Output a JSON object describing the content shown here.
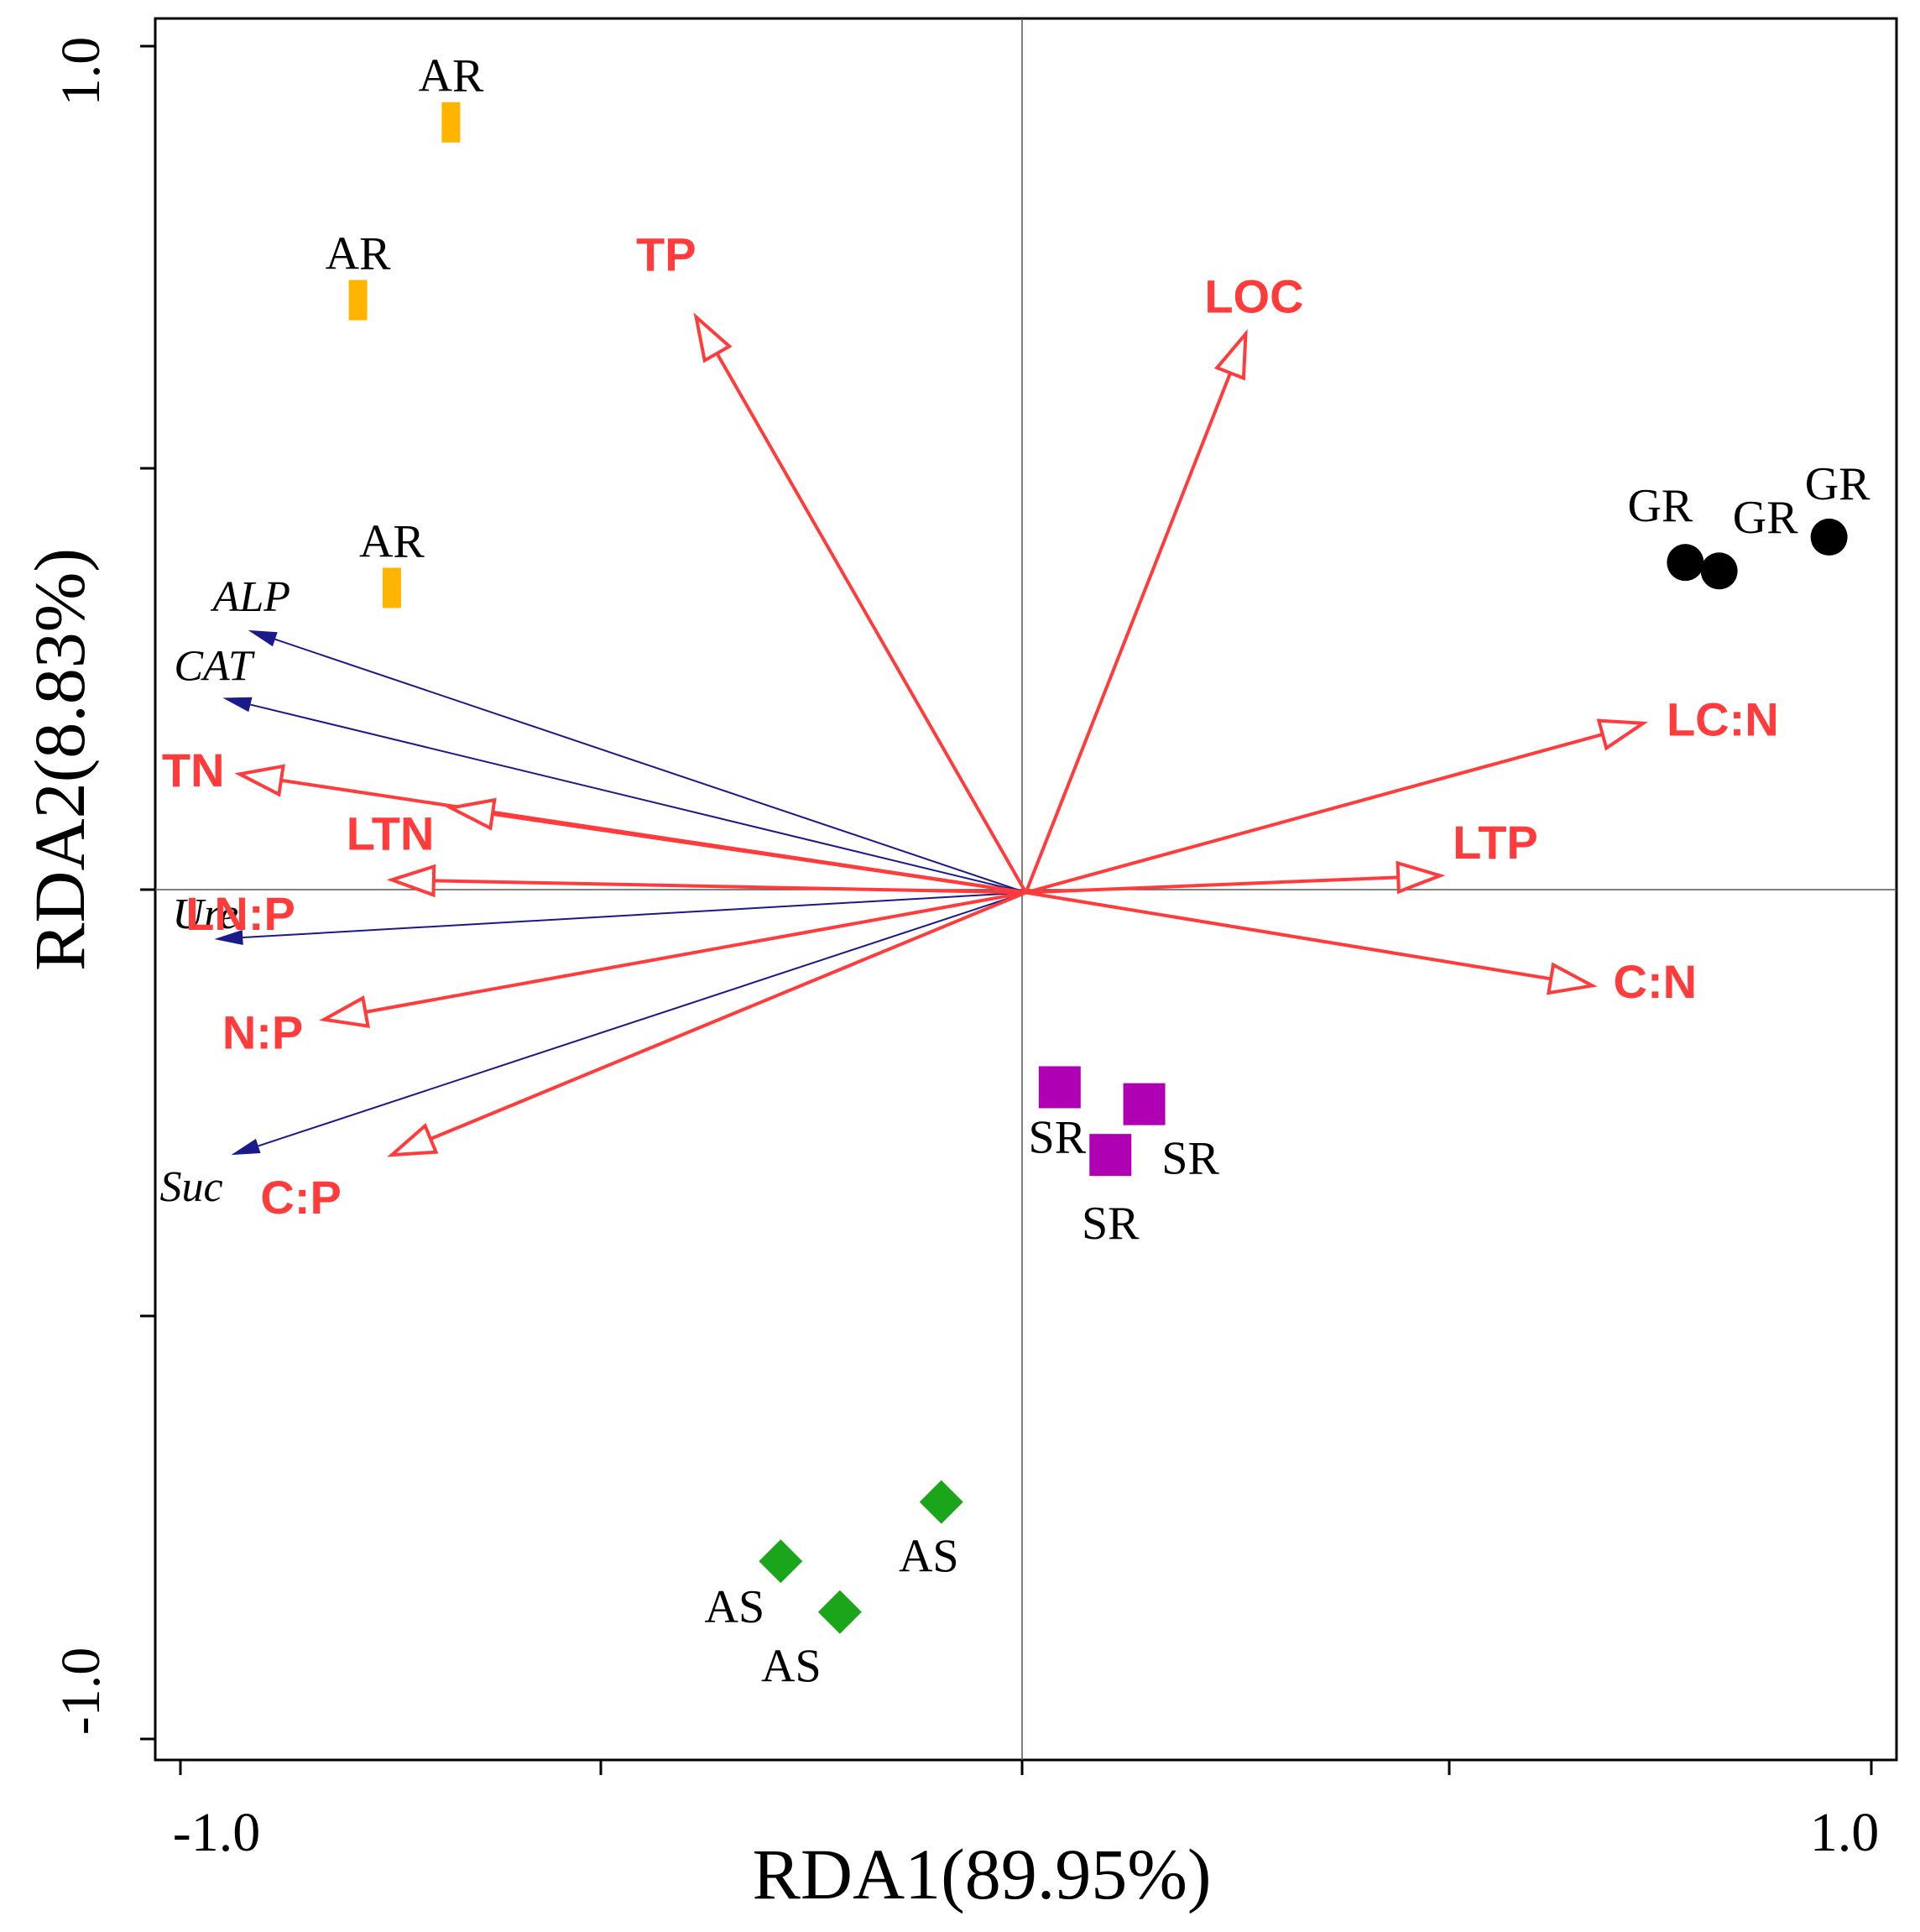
{
  "chart_data": {
    "type": "scatter",
    "subtype": "rda-biplot",
    "xlabel": "RDA1(89.95%)",
    "ylabel": "RDA2(8.83%)",
    "xlim": [
      -1.0,
      1.0
    ],
    "ylim": [
      -1.0,
      1.0
    ],
    "x_tick_labels": [
      "-1.0",
      "1.0"
    ],
    "y_tick_labels": [
      "1.0",
      "-1.0"
    ],
    "origin_lines": true,
    "colors": {
      "env_arrow": "#ff3b3b",
      "enzyme_arrow": "#1a1a8c",
      "AR": "#ffb400",
      "GR": "#000000",
      "SR": "#b000b4",
      "AS": "#1aa51a",
      "axis": "#000000"
    },
    "env_arrows": [
      {
        "label": "TP",
        "x": -0.39,
        "y": 0.68
      },
      {
        "label": "LOC",
        "x": 0.26,
        "y": 0.66
      },
      {
        "label": "LC:N",
        "x": 0.73,
        "y": 0.2
      },
      {
        "label": "LTP",
        "x": 0.49,
        "y": 0.02
      },
      {
        "label": "C:N",
        "x": 0.67,
        "y": -0.11
      },
      {
        "label": "TN",
        "x": -0.93,
        "y": 0.14
      },
      {
        "label": "LTN",
        "x": -0.68,
        "y": 0.1
      },
      {
        "label": "LN:P",
        "x": -0.75,
        "y": 0.015
      },
      {
        "label": "N:P",
        "x": -0.83,
        "y": -0.15
      },
      {
        "label": "C:P",
        "x": -0.75,
        "y": -0.31
      }
    ],
    "enzyme_arrows": [
      {
        "label": "ALP",
        "x": -0.92,
        "y": 0.31
      },
      {
        "label": "CAT",
        "x": -0.95,
        "y": 0.23
      },
      {
        "label": "Ure",
        "x": -0.96,
        "y": -0.055
      },
      {
        "label": "Suc",
        "x": -0.94,
        "y": -0.31
      }
    ],
    "sites": [
      {
        "group": "AR",
        "shape": "rect",
        "points": [
          [
            -0.68,
            0.91
          ],
          [
            -0.79,
            0.7
          ],
          [
            -0.75,
            0.36
          ]
        ]
      },
      {
        "group": "GR",
        "shape": "circle",
        "points": [
          [
            0.78,
            0.39
          ],
          [
            0.82,
            0.38
          ],
          [
            0.95,
            0.42
          ]
        ]
      },
      {
        "group": "SR",
        "shape": "square",
        "points": [
          [
            0.04,
            -0.23
          ],
          [
            0.14,
            -0.25
          ],
          [
            0.1,
            -0.31
          ]
        ]
      },
      {
        "group": "AS",
        "shape": "diamond",
        "points": [
          [
            -0.1,
            -0.72
          ],
          [
            -0.29,
            -0.79
          ],
          [
            -0.22,
            -0.85
          ]
        ]
      }
    ]
  }
}
